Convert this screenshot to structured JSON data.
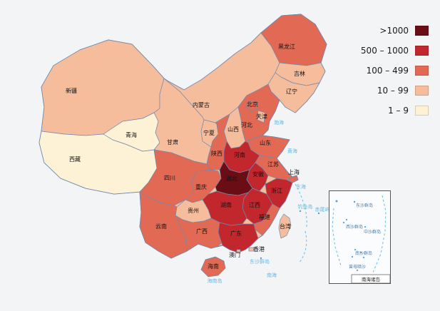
{
  "palette": {
    "gt1000": "#6a0d14",
    "c500": "#c1272d",
    "c100": "#e26a54",
    "c10": "#f6bd9c",
    "c1": "#fdf2d6"
  },
  "legend": {
    "items": [
      {
        "label": ">1000",
        "key": "gt1000"
      },
      {
        "label": "500 – 1000",
        "key": "c500"
      },
      {
        "label": "100 – 499",
        "key": "c100"
      },
      {
        "label": "10 – 99",
        "key": "c10"
      },
      {
        "label": "1 – 9",
        "key": "c1"
      }
    ]
  },
  "map": {
    "provinces": [
      {
        "id": "xinjiang",
        "name": "新疆",
        "key": "c10"
      },
      {
        "id": "xizang",
        "name": "西藏",
        "key": "c1"
      },
      {
        "id": "qinghai",
        "name": "青海",
        "key": "c1"
      },
      {
        "id": "gansu",
        "name": "甘肃",
        "key": "c10"
      },
      {
        "id": "neimenggu",
        "name": "内蒙古",
        "key": "c10"
      },
      {
        "id": "heilongjiang",
        "name": "黑龙江",
        "key": "c100"
      },
      {
        "id": "jilin",
        "name": "吉林",
        "key": "c10"
      },
      {
        "id": "liaoning",
        "name": "辽宁",
        "key": "c10"
      },
      {
        "id": "hebei",
        "name": "河北",
        "key": "c100"
      },
      {
        "id": "shanxi",
        "name": "山西",
        "key": "c10"
      },
      {
        "id": "ningxia",
        "name": "宁夏",
        "key": "c10"
      },
      {
        "id": "shaanxi",
        "name": "陕西",
        "key": "c100"
      },
      {
        "id": "shandong",
        "name": "山东",
        "key": "c100"
      },
      {
        "id": "henan",
        "name": "河南",
        "key": "c500"
      },
      {
        "id": "jiangsu",
        "name": "江苏",
        "key": "c100"
      },
      {
        "id": "anhui",
        "name": "安徽",
        "key": "c500"
      },
      {
        "id": "hubei",
        "name": "湖北",
        "key": "gt1000"
      },
      {
        "id": "chongqing",
        "name": "重庆",
        "key": "c100"
      },
      {
        "id": "sichuan",
        "name": "四川",
        "key": "c100"
      },
      {
        "id": "zhejiang",
        "name": "浙江",
        "key": "c500"
      },
      {
        "id": "jiangxi",
        "name": "江西",
        "key": "c500"
      },
      {
        "id": "hunan",
        "name": "湖南",
        "key": "c500"
      },
      {
        "id": "fujian",
        "name": "福建",
        "key": "c100"
      },
      {
        "id": "guizhou",
        "name": "贵州",
        "key": "c10"
      },
      {
        "id": "yunnan",
        "name": "云南",
        "key": "c100"
      },
      {
        "id": "guangxi",
        "name": "广西",
        "key": "c100"
      },
      {
        "id": "guangdong",
        "name": "广东",
        "key": "c500"
      },
      {
        "id": "hainan",
        "name": "海南",
        "key": "c100"
      },
      {
        "id": "taiwan",
        "name": "台湾",
        "key": "c10"
      },
      {
        "id": "beijing",
        "name": "北京",
        "key": "c100"
      },
      {
        "id": "tianjin",
        "name": "天津",
        "key": "c10"
      },
      {
        "id": "shanghai",
        "name": "上海",
        "key": "c100"
      },
      {
        "id": "xianggang",
        "name": "香港",
        "key": "c10"
      },
      {
        "id": "aomen",
        "name": "澳门",
        "key": "c10"
      }
    ],
    "sea_labels": [
      {
        "id": "bohai",
        "name": "渤海"
      },
      {
        "id": "huanghai",
        "name": "黄海"
      },
      {
        "id": "donghai",
        "name": "东海"
      },
      {
        "id": "diaoyudao",
        "name": "钓鱼岛"
      },
      {
        "id": "chiweiyu",
        "name": "赤尾屿"
      },
      {
        "id": "dongsha",
        "name": "东沙群岛"
      },
      {
        "id": "nanhai",
        "name": "南海"
      },
      {
        "id": "hainandao",
        "name": "海南岛"
      }
    ]
  },
  "inset": {
    "caption": "南海诸岛",
    "labels": [
      {
        "id": "dongsha_i",
        "name": "东沙群岛"
      },
      {
        "id": "xisha_i",
        "name": "西沙群岛"
      },
      {
        "id": "zhongsha_i",
        "name": "中沙群岛"
      },
      {
        "id": "nansha_i",
        "name": "南沙群岛"
      },
      {
        "id": "zengmu_i",
        "name": "曾母暗沙"
      }
    ]
  }
}
